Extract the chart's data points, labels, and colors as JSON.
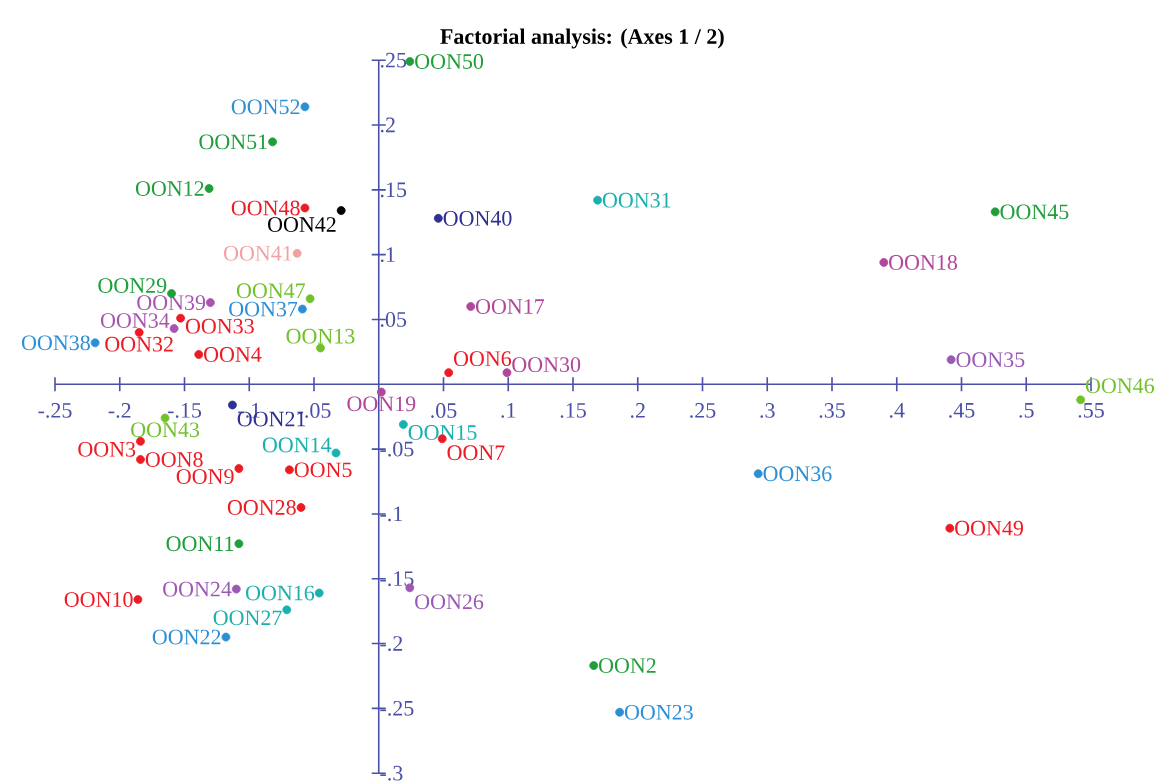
{
  "chart_data": {
    "type": "scatter",
    "title": "Factorial analysis: (Axes 1 / 2)",
    "marker": "circle",
    "xlim": [
      -0.25,
      0.55
    ],
    "ylim": [
      -0.3,
      0.25
    ],
    "xticks": [
      {
        "value": -0.25,
        "label": "-.25"
      },
      {
        "value": -0.2,
        "label": "-.2"
      },
      {
        "value": -0.15,
        "label": "-.15"
      },
      {
        "value": -0.1,
        "label": "-.1"
      },
      {
        "value": -0.05,
        "label": "-.05"
      },
      {
        "value": 0.05,
        "label": ".05"
      },
      {
        "value": 0.1,
        "label": ".1"
      },
      {
        "value": 0.15,
        "label": ".15"
      },
      {
        "value": 0.2,
        "label": ".2"
      },
      {
        "value": 0.25,
        "label": ".25"
      },
      {
        "value": 0.3,
        "label": ".3"
      },
      {
        "value": 0.35,
        "label": ".35"
      },
      {
        "value": 0.4,
        "label": ".4"
      },
      {
        "value": 0.45,
        "label": ".45"
      },
      {
        "value": 0.5,
        "label": ".5"
      },
      {
        "value": 0.55,
        "label": ".55"
      }
    ],
    "yticks": [
      {
        "value": -0.3,
        "label": "-.3"
      },
      {
        "value": -0.25,
        "label": "-.25"
      },
      {
        "value": -0.2,
        "label": "-.2"
      },
      {
        "value": -0.15,
        "label": "-.15"
      },
      {
        "value": -0.1,
        "label": "-.1"
      },
      {
        "value": -0.05,
        "label": "-.05"
      },
      {
        "value": 0.05,
        "label": ".05"
      },
      {
        "value": 0.1,
        "label": ".1"
      },
      {
        "value": 0.15,
        "label": ".15"
      },
      {
        "value": 0.2,
        "label": ".2"
      },
      {
        "value": 0.25,
        "label": ".25"
      }
    ],
    "series": [
      {
        "name": "OON52",
        "color": "#2c8fd6",
        "x": [
          -0.057
        ],
        "values": [
          0.214
        ]
      },
      {
        "name": "OON51",
        "color": "#1f9e3a",
        "x": [
          -0.082
        ],
        "values": [
          0.187
        ]
      },
      {
        "name": "OON12",
        "color": "#1f9e3a",
        "x": [
          -0.131
        ],
        "values": [
          0.151
        ]
      },
      {
        "name": "OON48",
        "color": "#ed1c24",
        "x": [
          -0.057
        ],
        "values": [
          0.136
        ]
      },
      {
        "name": "OON42",
        "color": "#000000",
        "x": [
          -0.029
        ],
        "values": [
          0.134
        ]
      },
      {
        "name": "OON41",
        "color": "#f5a0a0",
        "x": [
          -0.063
        ],
        "values": [
          0.101
        ]
      },
      {
        "name": "OON47",
        "color": "#72c02c",
        "x": [
          -0.053
        ],
        "values": [
          0.066
        ]
      },
      {
        "name": "OON37",
        "color": "#2c8fd6",
        "x": [
          -0.059
        ],
        "values": [
          0.058
        ]
      },
      {
        "name": "OON39",
        "color": "#a855b0",
        "x": [
          -0.13
        ],
        "values": [
          0.063
        ]
      },
      {
        "name": "OON29",
        "color": "#1f9e3a",
        "x": [
          -0.16
        ],
        "values": [
          0.07
        ]
      },
      {
        "name": "OON33",
        "color": "#ed1c24",
        "x": [
          -0.153
        ],
        "values": [
          0.051
        ]
      },
      {
        "name": "OON34",
        "color": "#a855b0",
        "x": [
          -0.158
        ],
        "values": [
          0.043
        ]
      },
      {
        "name": "OON32",
        "color": "#ed1c24",
        "x": [
          -0.185
        ],
        "values": [
          0.04
        ]
      },
      {
        "name": "OON4",
        "color": "#ed1c24",
        "x": [
          -0.139
        ],
        "values": [
          0.023
        ]
      },
      {
        "name": "OON38",
        "color": "#2c8fd6",
        "x": [
          -0.219
        ],
        "values": [
          0.032
        ]
      },
      {
        "name": "OON13",
        "color": "#72c02c",
        "x": [
          -0.045
        ],
        "values": [
          0.028
        ]
      },
      {
        "name": "OON21",
        "color": "#2e3192",
        "x": [
          -0.113
        ],
        "values": [
          -0.016
        ]
      },
      {
        "name": "OON43",
        "color": "#72c02c",
        "x": [
          -0.165
        ],
        "values": [
          -0.026
        ]
      },
      {
        "name": "OON3",
        "color": "#ed1c24",
        "x": [
          -0.184
        ],
        "values": [
          -0.044
        ]
      },
      {
        "name": "OON8",
        "color": "#ed1c24",
        "x": [
          -0.184
        ],
        "values": [
          -0.058
        ]
      },
      {
        "name": "OON9",
        "color": "#ed1c24",
        "x": [
          -0.108
        ],
        "values": [
          -0.065
        ]
      },
      {
        "name": "OON5",
        "color": "#ed1c24",
        "x": [
          -0.069
        ],
        "values": [
          -0.066
        ]
      },
      {
        "name": "OON14",
        "color": "#1ab0b0",
        "x": [
          -0.033
        ],
        "values": [
          -0.053
        ]
      },
      {
        "name": "OON28",
        "color": "#ed1c24",
        "x": [
          -0.06
        ],
        "values": [
          -0.095
        ]
      },
      {
        "name": "OON11",
        "color": "#1f9e3a",
        "x": [
          -0.108
        ],
        "values": [
          -0.123
        ]
      },
      {
        "name": "OON24",
        "color": "#9b59b6",
        "x": [
          -0.11
        ],
        "values": [
          -0.158
        ]
      },
      {
        "name": "OON16",
        "color": "#1ab0b0",
        "x": [
          -0.046
        ],
        "values": [
          -0.161
        ]
      },
      {
        "name": "OON27",
        "color": "#1ab0b0",
        "x": [
          -0.071
        ],
        "values": [
          -0.174
        ]
      },
      {
        "name": "OON10",
        "color": "#ed1c24",
        "x": [
          -0.186
        ],
        "values": [
          -0.166
        ]
      },
      {
        "name": "OON22",
        "color": "#2c8fd6",
        "x": [
          -0.118
        ],
        "values": [
          -0.195
        ]
      },
      {
        "name": "OON50",
        "color": "#1f9e3a",
        "x": [
          0.024
        ],
        "values": [
          0.249
        ]
      },
      {
        "name": "OON40",
        "color": "#2e3192",
        "x": [
          0.046
        ],
        "values": [
          0.128
        ]
      },
      {
        "name": "OON31",
        "color": "#1ab0b0",
        "x": [
          0.169
        ],
        "values": [
          0.142
        ]
      },
      {
        "name": "OON17",
        "color": "#b0479a",
        "x": [
          0.071
        ],
        "values": [
          0.06
        ]
      },
      {
        "name": "OON6",
        "color": "#ed1c24",
        "x": [
          0.054
        ],
        "values": [
          0.009
        ]
      },
      {
        "name": "OON30",
        "color": "#b0479a",
        "x": [
          0.099
        ],
        "values": [
          0.009
        ]
      },
      {
        "name": "OON19",
        "color": "#b0479a",
        "x": [
          0.002
        ],
        "values": [
          -0.006
        ]
      },
      {
        "name": "OON15",
        "color": "#1ab0b0",
        "x": [
          0.019
        ],
        "values": [
          -0.031
        ]
      },
      {
        "name": "OON7",
        "color": "#ed1c24",
        "x": [
          0.049
        ],
        "values": [
          -0.042
        ]
      },
      {
        "name": "OON45",
        "color": "#1f9e3a",
        "x": [
          0.476
        ],
        "values": [
          0.133
        ]
      },
      {
        "name": "OON18",
        "color": "#b0479a",
        "x": [
          0.39
        ],
        "values": [
          0.094
        ]
      },
      {
        "name": "OON35",
        "color": "#9b59b6",
        "x": [
          0.442
        ],
        "values": [
          0.019
        ]
      },
      {
        "name": "OON46",
        "color": "#72c02c",
        "x": [
          0.542
        ],
        "values": [
          -0.012
        ]
      },
      {
        "name": "OON36",
        "color": "#2c8fd6",
        "x": [
          0.293
        ],
        "values": [
          -0.069
        ]
      },
      {
        "name": "OON49",
        "color": "#ed1c24",
        "x": [
          0.441
        ],
        "values": [
          -0.111
        ]
      },
      {
        "name": "OON26",
        "color": "#9b59b6",
        "x": [
          0.024
        ],
        "values": [
          -0.157
        ]
      },
      {
        "name": "OON2",
        "color": "#1f9e3a",
        "x": [
          0.166
        ],
        "values": [
          -0.217
        ]
      },
      {
        "name": "OON23",
        "color": "#2c8fd6",
        "x": [
          0.186
        ],
        "values": [
          -0.253
        ]
      }
    ]
  }
}
